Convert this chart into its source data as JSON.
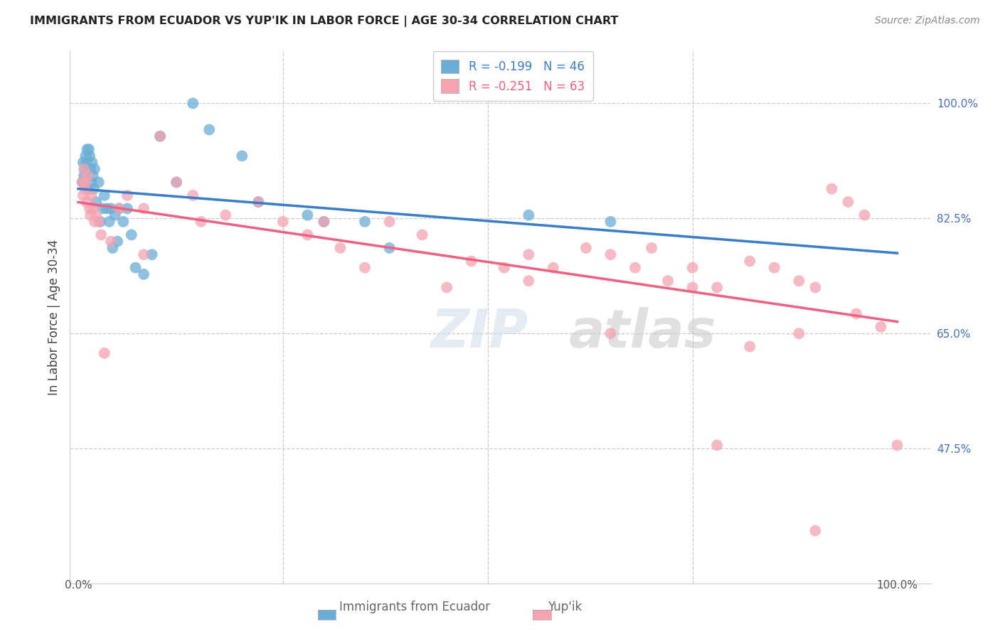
{
  "title": "IMMIGRANTS FROM ECUADOR VS YUP'IK IN LABOR FORCE | AGE 30-34 CORRELATION CHART",
  "source": "Source: ZipAtlas.com",
  "ylabel": "In Labor Force | Age 30-34",
  "ytick_labels": [
    "100.0%",
    "82.5%",
    "65.0%",
    "47.5%"
  ],
  "ytick_values": [
    1.0,
    0.825,
    0.65,
    0.475
  ],
  "legend_r1": "R = -0.199",
  "legend_n1": "N = 46",
  "legend_r2": "R = -0.251",
  "legend_n2": "N = 63",
  "color_ecuador": "#6aaed6",
  "color_yupik": "#f4a3b0",
  "color_ecuador_line": "#3a7dc9",
  "color_yupik_line": "#f06080",
  "color_dashed": "#aaccee",
  "watermark_zip": "ZIP",
  "watermark_atlas": "atlas",
  "ecuador_x": [
    0.005,
    0.006,
    0.007,
    0.008,
    0.009,
    0.01,
    0.011,
    0.012,
    0.013,
    0.014,
    0.015,
    0.016,
    0.017,
    0.018,
    0.019,
    0.02,
    0.022,
    0.025,
    0.027,
    0.03,
    0.032,
    0.035,
    0.038,
    0.04,
    0.042,
    0.045,
    0.048,
    0.05,
    0.055,
    0.06,
    0.065,
    0.07,
    0.08,
    0.09,
    0.1,
    0.12,
    0.14,
    0.16,
    0.2,
    0.22,
    0.28,
    0.3,
    0.35,
    0.38,
    0.55,
    0.65
  ],
  "ecuador_y": [
    0.88,
    0.91,
    0.89,
    0.9,
    0.92,
    0.91,
    0.93,
    0.87,
    0.93,
    0.92,
    0.9,
    0.88,
    0.91,
    0.89,
    0.87,
    0.9,
    0.85,
    0.88,
    0.82,
    0.84,
    0.86,
    0.84,
    0.82,
    0.84,
    0.78,
    0.83,
    0.79,
    0.84,
    0.82,
    0.84,
    0.8,
    0.75,
    0.74,
    0.77,
    0.95,
    0.88,
    1.0,
    0.96,
    0.92,
    0.85,
    0.83,
    0.82,
    0.82,
    0.78,
    0.83,
    0.82
  ],
  "yupik_x": [
    0.005,
    0.006,
    0.007,
    0.008,
    0.009,
    0.01,
    0.012,
    0.014,
    0.015,
    0.016,
    0.018,
    0.02,
    0.022,
    0.025,
    0.028,
    0.032,
    0.04,
    0.05,
    0.06,
    0.08,
    0.1,
    0.12,
    0.14,
    0.18,
    0.22,
    0.25,
    0.28,
    0.32,
    0.38,
    0.42,
    0.48,
    0.52,
    0.55,
    0.58,
    0.62,
    0.65,
    0.68,
    0.72,
    0.75,
    0.78,
    0.82,
    0.85,
    0.88,
    0.9,
    0.92,
    0.94,
    0.96,
    0.98,
    1.0,
    0.45,
    0.35,
    0.15,
    0.08,
    0.3,
    0.55,
    0.65,
    0.7,
    0.75,
    0.82,
    0.9,
    0.95,
    0.78,
    0.88
  ],
  "yupik_y": [
    0.88,
    0.86,
    0.9,
    0.87,
    0.88,
    0.85,
    0.89,
    0.84,
    0.83,
    0.86,
    0.84,
    0.82,
    0.83,
    0.82,
    0.8,
    0.62,
    0.79,
    0.84,
    0.86,
    0.84,
    0.95,
    0.88,
    0.86,
    0.83,
    0.85,
    0.82,
    0.8,
    0.78,
    0.82,
    0.8,
    0.76,
    0.75,
    0.73,
    0.75,
    0.78,
    0.77,
    0.75,
    0.73,
    0.75,
    0.72,
    0.76,
    0.75,
    0.73,
    0.72,
    0.87,
    0.85,
    0.83,
    0.66,
    0.48,
    0.72,
    0.75,
    0.82,
    0.77,
    0.82,
    0.77,
    0.65,
    0.78,
    0.72,
    0.63,
    0.35,
    0.68,
    0.48,
    0.65
  ]
}
